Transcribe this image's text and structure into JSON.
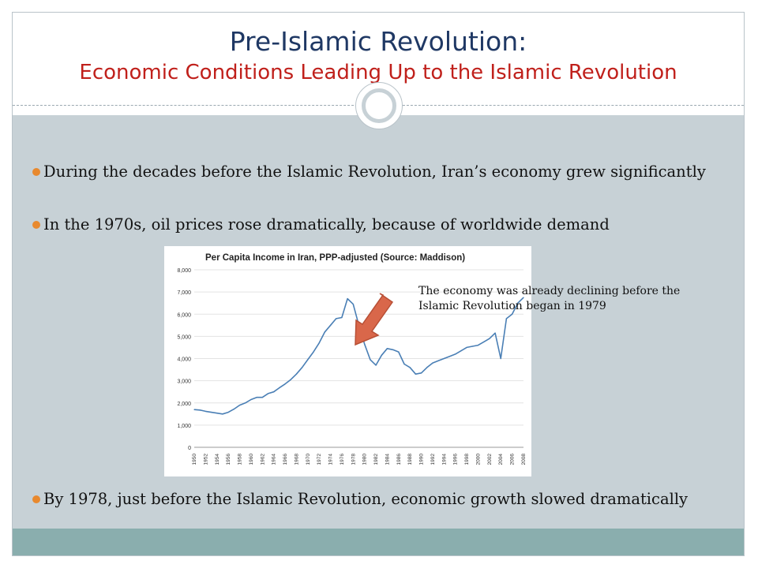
{
  "slide": {
    "title": "Pre-Islamic Revolution:",
    "subtitle": "Economic Conditions Leading Up to the Islamic Revolution"
  },
  "bullets": [
    "During the decades before the Islamic Revolution, Iran’s economy grew significantly",
    "In the 1970s, oil prices rose dramatically, because of worldwide demand",
    "By 1978, just before the Islamic Revolution, economic growth slowed dramatically"
  ],
  "annotation": "The economy was already declining before the Islamic Revolution began in 1979",
  "colors": {
    "title": "#1f3864",
    "subtitle": "#c0201b",
    "line": "#4a7fb5",
    "arrow": "#d9674a",
    "bullet_marker": "#e8892e"
  },
  "chart_data": {
    "type": "line",
    "title": "Per Capita Income in Iran, PPP-adjusted (Source: Maddison)",
    "xlabel": "",
    "ylabel": "",
    "ylim": [
      0,
      8000
    ],
    "yticks": [
      0,
      1000,
      2000,
      3000,
      4000,
      5000,
      6000,
      7000,
      8000
    ],
    "ytick_labels": [
      "0",
      "1,000",
      "2,000",
      "3,000",
      "4,000",
      "5,000",
      "6,000",
      "7,000",
      "8,000"
    ],
    "xtick_labels": [
      "1950",
      "1952",
      "1954",
      "1956",
      "1958",
      "1960",
      "1962",
      "1964",
      "1966",
      "1968",
      "1970",
      "1972",
      "1974",
      "1976",
      "1978",
      "1980",
      "1982",
      "1984",
      "1986",
      "1988",
      "1990",
      "1992",
      "1994",
      "1996",
      "1998",
      "2000",
      "2002",
      "2004",
      "2006",
      "2008"
    ],
    "grid": true,
    "series": [
      {
        "name": "",
        "x": [
          1950,
          1951,
          1952,
          1953,
          1954,
          1955,
          1956,
          1957,
          1958,
          1959,
          1960,
          1961,
          1962,
          1963,
          1964,
          1965,
          1966,
          1967,
          1968,
          1969,
          1970,
          1971,
          1972,
          1973,
          1974,
          1975,
          1976,
          1977,
          1978,
          1979,
          1980,
          1981,
          1982,
          1983,
          1984,
          1985,
          1986,
          1987,
          1988,
          1989,
          1990,
          1991,
          1992,
          1993,
          1994,
          1995,
          1996,
          1997,
          1998,
          1999,
          2000,
          2001,
          2002,
          2003,
          2004,
          2005,
          2006,
          2007,
          2008
        ],
        "y": [
          1700,
          1680,
          1620,
          1580,
          1540,
          1500,
          1580,
          1720,
          1900,
          2000,
          2150,
          2250,
          2250,
          2420,
          2500,
          2680,
          2850,
          3050,
          3300,
          3600,
          3950,
          4300,
          4700,
          5200,
          5500,
          5800,
          5850,
          6700,
          6450,
          5500,
          4650,
          3950,
          3700,
          4150,
          4450,
          4400,
          4300,
          3750,
          3600,
          3300,
          3350,
          3600,
          3800,
          3900,
          4000,
          4100,
          4200,
          4350,
          4500,
          4550,
          4600,
          4750,
          4900,
          5150,
          4000,
          5800,
          6000,
          6500,
          6750
        ]
      }
    ]
  }
}
